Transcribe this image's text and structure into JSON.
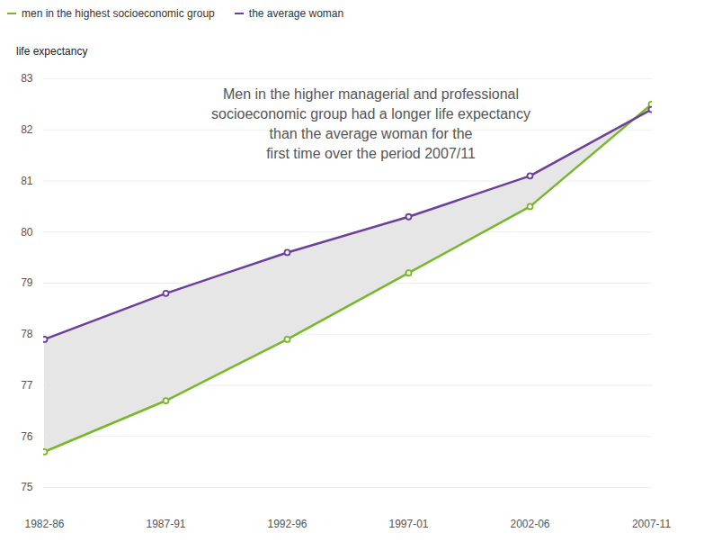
{
  "chart_data": {
    "type": "line",
    "y_label": "life expectancy",
    "annotation": "Men in the higher managerial and professional\nsocioeconomic group had a longer life expectancy\nthan the average woman for the\nfirst time over the period 2007/11",
    "categories": [
      "1982-86",
      "1987-91",
      "1992-96",
      "1997-01",
      "2002-06",
      "2007-11"
    ],
    "series": [
      {
        "name": "men in the highest socioeconomic group",
        "color": "#76b82a",
        "marker": "circle",
        "values": [
          75.7,
          76.7,
          77.9,
          79.2,
          80.5,
          82.5
        ]
      },
      {
        "name": "the average woman",
        "color": "#6d3f98",
        "marker": "circle",
        "values": [
          77.9,
          78.8,
          79.6,
          80.3,
          81.1,
          82.4
        ]
      }
    ],
    "ylim": [
      75,
      83
    ],
    "yticks": [
      75,
      76,
      77,
      78,
      79,
      80,
      81,
      82,
      83
    ],
    "grid": true,
    "legend": "top-left"
  }
}
